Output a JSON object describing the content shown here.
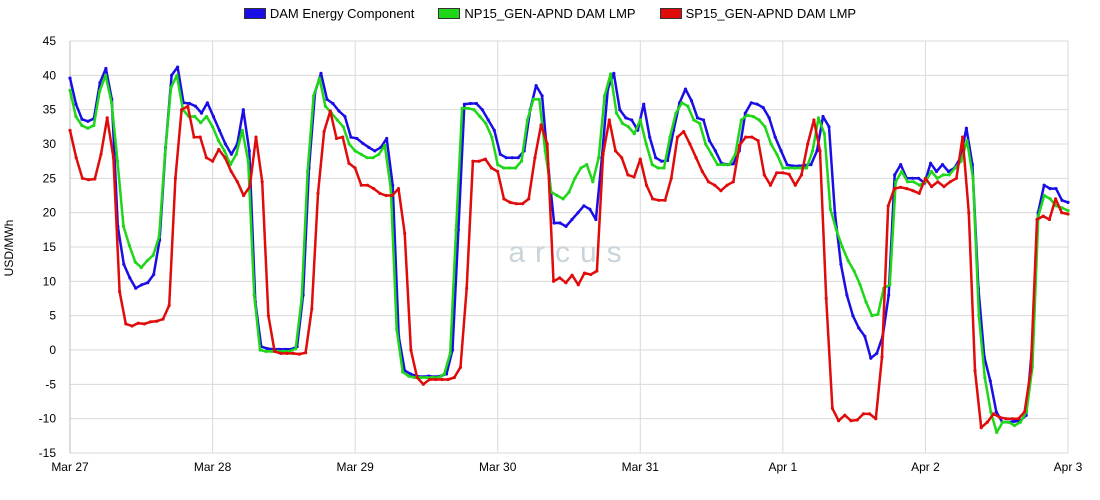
{
  "colors": {
    "background": "#ffffff",
    "grid": "#d9d9d9",
    "axis": "#000000",
    "watermark": "#c9d4dc"
  },
  "watermark": "arcus",
  "chart_data": {
    "type": "line",
    "title": "",
    "xlabel": "",
    "ylabel": "USD/MWh",
    "ylim": [
      -15,
      45
    ],
    "y_ticks": [
      45,
      40,
      35,
      30,
      25,
      20,
      15,
      10,
      5,
      0,
      -5,
      -10,
      -15
    ],
    "xlim": [
      0,
      7
    ],
    "x_ticks": [
      {
        "x": 0,
        "label": "Mar 27"
      },
      {
        "x": 1,
        "label": "Mar 28"
      },
      {
        "x": 2,
        "label": "Mar 29"
      },
      {
        "x": 3,
        "label": "Mar 30"
      },
      {
        "x": 4,
        "label": "Mar 31"
      },
      {
        "x": 5,
        "label": "Apr 1"
      },
      {
        "x": 6,
        "label": "Apr 2"
      },
      {
        "x": 7,
        "label": "Apr 3"
      }
    ],
    "grid": true,
    "legend_position": "top-center",
    "x_units": "days since Mar 27, hourly points",
    "series": [
      {
        "name": "DAM Energy Component",
        "color": "#1a0ee6",
        "values": [
          39.6,
          35.8,
          33.6,
          33.3,
          33.7,
          38.9,
          41.0,
          36.5,
          18.0,
          12.5,
          10.5,
          9.0,
          9.5,
          9.8,
          11.0,
          16.0,
          29.5,
          40.0,
          41.2,
          36.0,
          35.9,
          35.5,
          34.5,
          36.0,
          34.0,
          32.0,
          30.0,
          28.5,
          30.0,
          35.0,
          29.0,
          7.0,
          0.5,
          0.2,
          0.1,
          0.1,
          0.1,
          0.1,
          0.5,
          8.0,
          26.5,
          37.5,
          40.3,
          36.5,
          35.9,
          34.8,
          34.0,
          31.0,
          30.8,
          30.1,
          29.5,
          29.0,
          29.5,
          30.8,
          24.0,
          2.0,
          -3.0,
          -3.5,
          -3.8,
          -3.9,
          -3.8,
          -3.9,
          -3.8,
          -3.5,
          0.0,
          17.5,
          35.8,
          35.9,
          35.9,
          35.0,
          33.5,
          32.0,
          28.5,
          28.0,
          28.0,
          28.0,
          29.0,
          35.0,
          38.5,
          37.0,
          27.0,
          18.5,
          18.5,
          18.0,
          19.0,
          20.0,
          21.0,
          20.5,
          19.0,
          28.0,
          38.0,
          40.3,
          35.0,
          33.8,
          33.5,
          32.0,
          35.8,
          31.0,
          28.0,
          27.5,
          27.6,
          32.0,
          36.0,
          38.0,
          36.3,
          33.8,
          33.5,
          30.5,
          29.0,
          27.2,
          27.0,
          27.1,
          29.0,
          34.5,
          36.0,
          35.8,
          35.3,
          33.8,
          31.0,
          29.0,
          27.0,
          26.8,
          26.8,
          26.9,
          27.0,
          29.0,
          34.0,
          32.5,
          20.0,
          12.5,
          8.0,
          5.0,
          3.2,
          2.0,
          -1.2,
          -0.5,
          2.0,
          8.0,
          25.5,
          27.0,
          25.0,
          25.0,
          25.0,
          24.3,
          27.2,
          26.0,
          27.0,
          26.0,
          26.5,
          28.0,
          32.3,
          27.0,
          9.0,
          -1.0,
          -4.5,
          -9.0,
          -10.5,
          -10.5,
          -10.4,
          -10.3,
          -9.5,
          0.5,
          20.0,
          24.0,
          23.5,
          23.5,
          21.8,
          21.5
        ]
      },
      {
        "name": "NP15_GEN-APND DAM LMP",
        "color": "#1fd619",
        "values": [
          37.8,
          34.0,
          32.7,
          32.3,
          32.7,
          37.7,
          40.0,
          36.0,
          27.5,
          18.0,
          15.2,
          12.8,
          12.0,
          13.0,
          13.8,
          16.5,
          28.5,
          38.2,
          40.0,
          35.0,
          34.0,
          34.0,
          33.1,
          34.0,
          32.5,
          30.5,
          29.0,
          27.0,
          28.5,
          32.0,
          27.5,
          8.0,
          0.0,
          -0.2,
          -0.2,
          -0.2,
          -0.2,
          -0.2,
          0.2,
          7.5,
          26.0,
          37.0,
          39.6,
          35.5,
          34.5,
          33.5,
          32.5,
          30.0,
          29.0,
          28.5,
          28.0,
          28.0,
          28.5,
          29.8,
          23.5,
          3.0,
          -3.2,
          -3.8,
          -4.0,
          -4.0,
          -4.0,
          -4.0,
          -4.0,
          -3.5,
          -0.5,
          17.5,
          35.2,
          35.2,
          35.0,
          34.0,
          33.0,
          31.0,
          27.0,
          26.5,
          26.5,
          26.5,
          27.5,
          33.5,
          36.5,
          36.5,
          29.0,
          23.0,
          22.5,
          22.0,
          23.0,
          25.0,
          26.5,
          27.0,
          24.5,
          28.0,
          37.0,
          40.2,
          34.5,
          33.0,
          32.5,
          31.5,
          33.5,
          30.0,
          27.0,
          26.5,
          26.5,
          31.0,
          34.5,
          36.0,
          35.5,
          33.5,
          33.0,
          30.0,
          28.5,
          27.0,
          27.0,
          27.0,
          28.5,
          33.5,
          34.2,
          34.0,
          33.5,
          32.5,
          30.0,
          28.5,
          26.5,
          26.5,
          26.5,
          26.5,
          26.5,
          29.0,
          33.8,
          31.5,
          20.5,
          17.5,
          15.0,
          13.0,
          11.5,
          9.5,
          7.0,
          5.0,
          5.2,
          9.0,
          9.5,
          24.5,
          26.0,
          24.5,
          24.5,
          24.0,
          24.5,
          26.0,
          25.0,
          25.5,
          25.5,
          26.5,
          27.5,
          30.5,
          25.0,
          5.0,
          -4.0,
          -9.0,
          -12.0,
          -10.5,
          -10.5,
          -11.0,
          -10.5,
          -9.0,
          -2.5,
          19.5,
          22.5,
          22.0,
          21.0,
          20.7,
          20.3
        ]
      },
      {
        "name": "SP15_GEN-APND DAM LMP",
        "color": "#e00b0b",
        "values": [
          32.0,
          28.0,
          25.0,
          24.8,
          24.9,
          28.5,
          33.8,
          28.0,
          8.5,
          3.8,
          3.5,
          3.9,
          3.8,
          4.1,
          4.2,
          4.5,
          6.5,
          25.0,
          35.0,
          35.5,
          31.0,
          31.0,
          28.0,
          27.5,
          29.2,
          28.0,
          26.0,
          24.5,
          22.5,
          23.8,
          31.0,
          24.5,
          5.0,
          -0.2,
          -0.5,
          -0.5,
          -0.5,
          -0.6,
          -0.4,
          6.0,
          22.8,
          31.8,
          34.8,
          30.8,
          31.0,
          27.2,
          26.5,
          24.0,
          24.0,
          23.5,
          22.8,
          22.5,
          22.5,
          23.5,
          17.0,
          0.0,
          -4.0,
          -5.0,
          -4.3,
          -4.3,
          -4.3,
          -4.3,
          -4.0,
          -2.5,
          9.0,
          27.5,
          27.5,
          27.8,
          26.5,
          26.0,
          22.0,
          21.5,
          21.3,
          21.3,
          22.0,
          28.0,
          32.8,
          30.0,
          10.0,
          10.5,
          9.8,
          10.9,
          9.5,
          11.2,
          11.0,
          11.5,
          28.5,
          33.5,
          29.0,
          28.0,
          25.5,
          25.2,
          27.8,
          24.0,
          22.0,
          21.8,
          21.8,
          25.0,
          31.0,
          31.8,
          30.0,
          28.0,
          26.0,
          24.5,
          24.0,
          23.2,
          24.0,
          24.5,
          29.8,
          31.0,
          31.0,
          30.5,
          25.5,
          24.0,
          25.8,
          25.8,
          25.6,
          24.0,
          25.5,
          30.0,
          33.5,
          29.0,
          7.5,
          -8.5,
          -10.3,
          -9.5,
          -10.3,
          -10.2,
          -9.3,
          -9.3,
          -10.0,
          -1.0,
          21.0,
          23.5,
          23.7,
          23.5,
          23.2,
          22.8,
          25.0,
          23.8,
          24.5,
          23.8,
          24.5,
          25.0,
          31.0,
          20.0,
          -3.0,
          -11.3,
          -10.5,
          -9.3,
          -9.8,
          -10.0,
          -10.0,
          -10.0,
          -9.0,
          -3.0,
          19.0,
          19.5,
          19.0,
          22.0,
          20.0,
          19.8
        ]
      }
    ]
  }
}
